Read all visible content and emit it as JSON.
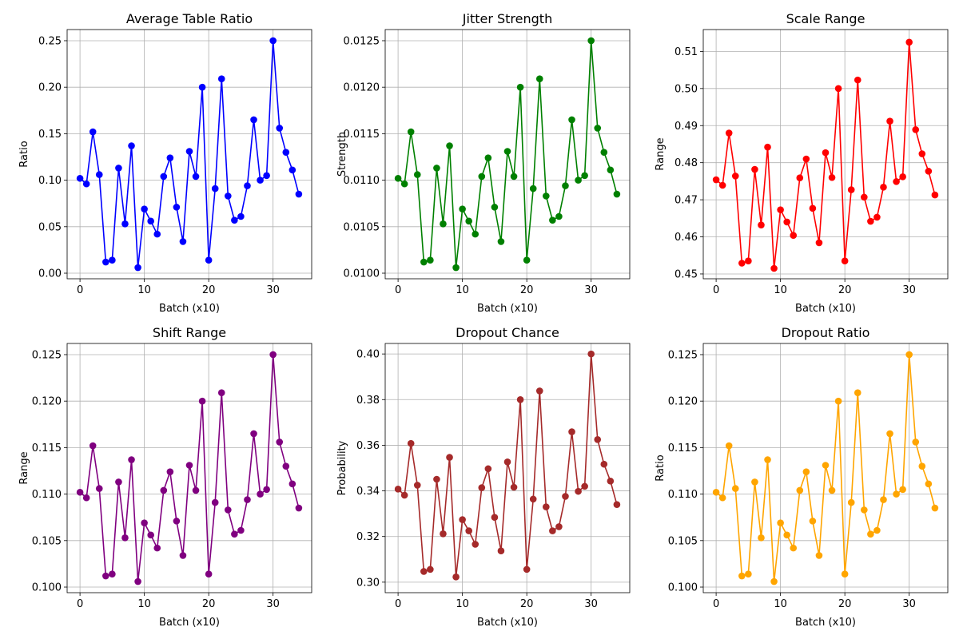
{
  "chart_data": [
    {
      "type": "line",
      "title": "Average Table Ratio",
      "xlabel": "Batch (x10)",
      "ylabel": "Ratio",
      "color": "#0000ff",
      "marker": "circle",
      "grid": true,
      "xlim": [
        -2,
        36
      ],
      "ylim": [
        -0.006,
        0.262
      ],
      "xticks": [
        0,
        10,
        20,
        30
      ],
      "xtick_labels": [
        "0",
        "10",
        "20",
        "30"
      ],
      "yticks": [
        0.0,
        0.05,
        0.1,
        0.15,
        0.2,
        0.25
      ],
      "ytick_labels": [
        "0.00",
        "0.05",
        "0.10",
        "0.15",
        "0.20",
        "0.25"
      ],
      "x": [
        0,
        1,
        2,
        3,
        4,
        5,
        6,
        7,
        8,
        9,
        10,
        11,
        12,
        13,
        14,
        15,
        16,
        17,
        18,
        19,
        20,
        21,
        22,
        23,
        24,
        25,
        26,
        27,
        28,
        29,
        30,
        31,
        32,
        33,
        34
      ],
      "values": [
        0.102,
        0.096,
        0.152,
        0.106,
        0.012,
        0.014,
        0.113,
        0.053,
        0.137,
        0.006,
        0.069,
        0.056,
        0.042,
        0.104,
        0.124,
        0.071,
        0.034,
        0.131,
        0.104,
        0.2,
        0.014,
        0.091,
        0.209,
        0.083,
        0.057,
        0.061,
        0.094,
        0.165,
        0.1,
        0.105,
        0.25,
        0.156,
        0.13,
        0.111,
        0.085
      ]
    },
    {
      "type": "line",
      "title": "Jitter Strength",
      "xlabel": "Batch (x10)",
      "ylabel": "Strength",
      "color": "#008000",
      "marker": "circle",
      "grid": true,
      "xlim": [
        -2,
        36
      ],
      "ylim": [
        0.00994,
        0.01262
      ],
      "xticks": [
        0,
        10,
        20,
        30
      ],
      "xtick_labels": [
        "0",
        "10",
        "20",
        "30"
      ],
      "yticks": [
        0.01,
        0.0105,
        0.011,
        0.0115,
        0.012,
        0.0125
      ],
      "ytick_labels": [
        "0.0100",
        "0.0105",
        "0.0110",
        "0.0115",
        "0.0120",
        "0.0125"
      ],
      "x": [
        0,
        1,
        2,
        3,
        4,
        5,
        6,
        7,
        8,
        9,
        10,
        11,
        12,
        13,
        14,
        15,
        16,
        17,
        18,
        19,
        20,
        21,
        22,
        23,
        24,
        25,
        26,
        27,
        28,
        29,
        30,
        31,
        32,
        33,
        34
      ],
      "values": [
        0.01102,
        0.01096,
        0.01152,
        0.01106,
        0.01012,
        0.01014,
        0.01113,
        0.01053,
        0.01137,
        0.01006,
        0.01069,
        0.01056,
        0.01042,
        0.01104,
        0.01124,
        0.01071,
        0.01034,
        0.01131,
        0.01104,
        0.012,
        0.01014,
        0.01091,
        0.01209,
        0.01083,
        0.01057,
        0.01061,
        0.01094,
        0.01165,
        0.011,
        0.01105,
        0.0125,
        0.01156,
        0.0113,
        0.01111,
        0.01085
      ]
    },
    {
      "type": "line",
      "title": "Scale Range",
      "xlabel": "Batch (x10)",
      "ylabel": "Range",
      "color": "#ff0000",
      "marker": "circle",
      "grid": true,
      "xlim": [
        -2,
        36
      ],
      "ylim": [
        0.4487,
        0.5159
      ],
      "xticks": [
        0,
        10,
        20,
        30
      ],
      "xtick_labels": [
        "0",
        "10",
        "20",
        "30"
      ],
      "yticks": [
        0.45,
        0.46,
        0.47,
        0.48,
        0.49,
        0.5,
        0.51
      ],
      "ytick_labels": [
        "0.45",
        "0.46",
        "0.47",
        "0.48",
        "0.49",
        "0.50",
        "0.51"
      ],
      "x": [
        0,
        1,
        2,
        3,
        4,
        5,
        6,
        7,
        8,
        9,
        10,
        11,
        12,
        13,
        14,
        15,
        16,
        17,
        18,
        19,
        20,
        21,
        22,
        23,
        24,
        25,
        26,
        27,
        28,
        29,
        30,
        31,
        32,
        33,
        34
      ],
      "values": [
        0.4754,
        0.4739,
        0.488,
        0.4764,
        0.4529,
        0.4535,
        0.4782,
        0.4632,
        0.4842,
        0.4515,
        0.4673,
        0.464,
        0.4604,
        0.4759,
        0.481,
        0.4677,
        0.4584,
        0.4827,
        0.476,
        0.5,
        0.4535,
        0.4727,
        0.5023,
        0.4707,
        0.4642,
        0.4653,
        0.4734,
        0.4912,
        0.4749,
        0.4762,
        0.5125,
        0.4889,
        0.4824,
        0.4777,
        0.4713
      ]
    },
    {
      "type": "line",
      "title": "Shift Range",
      "xlabel": "Batch (x10)",
      "ylabel": "Range",
      "color": "#800080",
      "marker": "circle",
      "grid": true,
      "xlim": [
        -2,
        36
      ],
      "ylim": [
        0.0994,
        0.1262
      ],
      "xticks": [
        0,
        10,
        20,
        30
      ],
      "xtick_labels": [
        "0",
        "10",
        "20",
        "30"
      ],
      "yticks": [
        0.1,
        0.105,
        0.11,
        0.115,
        0.12,
        0.125
      ],
      "ytick_labels": [
        "0.100",
        "0.105",
        "0.110",
        "0.115",
        "0.120",
        "0.125"
      ],
      "x": [
        0,
        1,
        2,
        3,
        4,
        5,
        6,
        7,
        8,
        9,
        10,
        11,
        12,
        13,
        14,
        15,
        16,
        17,
        18,
        19,
        20,
        21,
        22,
        23,
        24,
        25,
        26,
        27,
        28,
        29,
        30,
        31,
        32,
        33,
        34
      ],
      "values": [
        0.1102,
        0.1096,
        0.1152,
        0.1106,
        0.1012,
        0.1014,
        0.1113,
        0.1053,
        0.1137,
        0.1006,
        0.1069,
        0.1056,
        0.1042,
        0.1104,
        0.1124,
        0.1071,
        0.1034,
        0.1131,
        0.1104,
        0.12,
        0.1014,
        0.1091,
        0.1209,
        0.1083,
        0.1057,
        0.1061,
        0.1094,
        0.1165,
        0.11,
        0.1105,
        0.125,
        0.1156,
        0.113,
        0.1111,
        0.1085
      ]
    },
    {
      "type": "line",
      "title": "Dropout Chance",
      "xlabel": "Batch (x10)",
      "ylabel": "Probability",
      "color": "#a52a2a",
      "marker": "circle",
      "grid": true,
      "xlim": [
        -2,
        36
      ],
      "ylim": [
        0.2954,
        0.4046
      ],
      "xticks": [
        0,
        10,
        20,
        30
      ],
      "xtick_labels": [
        "0",
        "10",
        "20",
        "30"
      ],
      "yticks": [
        0.3,
        0.32,
        0.34,
        0.36,
        0.38,
        0.4
      ],
      "ytick_labels": [
        "0.30",
        "0.32",
        "0.34",
        "0.36",
        "0.38",
        "0.40"
      ],
      "x": [
        0,
        1,
        2,
        3,
        4,
        5,
        6,
        7,
        8,
        9,
        10,
        11,
        12,
        13,
        14,
        15,
        16,
        17,
        18,
        19,
        20,
        21,
        22,
        23,
        24,
        25,
        26,
        27,
        28,
        29,
        30,
        31,
        32,
        33,
        34
      ],
      "values": [
        0.3408,
        0.3381,
        0.3608,
        0.3425,
        0.3047,
        0.3056,
        0.3451,
        0.3212,
        0.3547,
        0.3023,
        0.3274,
        0.3225,
        0.3166,
        0.3414,
        0.3497,
        0.3284,
        0.3137,
        0.3527,
        0.3416,
        0.38,
        0.3056,
        0.3364,
        0.3838,
        0.333,
        0.3225,
        0.3243,
        0.3376,
        0.3659,
        0.3398,
        0.342,
        0.4,
        0.3625,
        0.3517,
        0.3443,
        0.334
      ]
    },
    {
      "type": "line",
      "title": "Dropout Ratio",
      "xlabel": "Batch (x10)",
      "ylabel": "Ratio",
      "color": "#ffa500",
      "marker": "circle",
      "grid": true,
      "xlim": [
        -2,
        36
      ],
      "ylim": [
        0.0994,
        0.1262
      ],
      "xticks": [
        0,
        10,
        20,
        30
      ],
      "xtick_labels": [
        "0",
        "10",
        "20",
        "30"
      ],
      "yticks": [
        0.1,
        0.105,
        0.11,
        0.115,
        0.12,
        0.125
      ],
      "ytick_labels": [
        "0.100",
        "0.105",
        "0.110",
        "0.115",
        "0.120",
        "0.125"
      ],
      "x": [
        0,
        1,
        2,
        3,
        4,
        5,
        6,
        7,
        8,
        9,
        10,
        11,
        12,
        13,
        14,
        15,
        16,
        17,
        18,
        19,
        20,
        21,
        22,
        23,
        24,
        25,
        26,
        27,
        28,
        29,
        30,
        31,
        32,
        33,
        34
      ],
      "values": [
        0.1102,
        0.1096,
        0.1152,
        0.1106,
        0.1012,
        0.1014,
        0.1113,
        0.1053,
        0.1137,
        0.1006,
        0.1069,
        0.1056,
        0.1042,
        0.1104,
        0.1124,
        0.1071,
        0.1034,
        0.1131,
        0.1104,
        0.12,
        0.1014,
        0.1091,
        0.1209,
        0.1083,
        0.1057,
        0.1061,
        0.1094,
        0.1165,
        0.11,
        0.1105,
        0.125,
        0.1156,
        0.113,
        0.1111,
        0.1085
      ]
    }
  ]
}
